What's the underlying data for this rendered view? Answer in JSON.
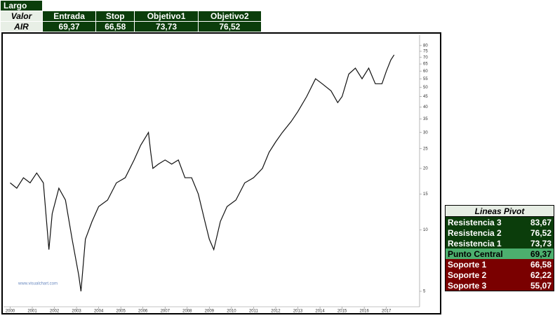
{
  "trade_table": {
    "title": "Largo",
    "header": [
      "Valor",
      "Entrada",
      "Stop",
      "Objetivo1",
      "Objetivo2"
    ],
    "row": [
      "AIR",
      "69,37",
      "66,58",
      "73,73",
      "76,52"
    ]
  },
  "pivot_table": {
    "title": "Lineas Pivot",
    "rows": [
      [
        "Resistencia 3",
        "83,67"
      ],
      [
        "Resistencia 2",
        "76,52"
      ],
      [
        "Resistencia 1",
        "73,73"
      ],
      [
        "Punto Central",
        "69,37"
      ],
      [
        "Soporte 1",
        "66,58"
      ],
      [
        "Soporte 2",
        "62,22"
      ],
      [
        "Soporte 3",
        "55,07"
      ]
    ]
  },
  "chart_data": {
    "type": "line",
    "watermark": "www.visualchart.com",
    "log_y": true,
    "xlim": [
      1999.7,
      2018.5
    ],
    "xticks": [
      2000,
      2001,
      2002,
      2003,
      2004,
      2005,
      2006,
      2007,
      2008,
      2009,
      2010,
      2011,
      2012,
      2013,
      2014,
      2015,
      2016,
      2017
    ],
    "ylim": [
      4.2,
      90
    ],
    "yticks": [
      5,
      10,
      15,
      20,
      25,
      30,
      35,
      40,
      45,
      50,
      55,
      60,
      65,
      70,
      75,
      80
    ],
    "series": [
      {
        "color": "#111111",
        "x": [
          2000.0,
          2000.3,
          2000.6,
          2000.9,
          2001.2,
          2001.5,
          2001.75,
          2001.9,
          2002.2,
          2002.5,
          2002.8,
          2003.1,
          2003.2,
          2003.4,
          2003.7,
          2004.0,
          2004.4,
          2004.8,
          2005.2,
          2005.6,
          2005.9,
          2006.25,
          2006.35,
          2006.45,
          2006.7,
          2007.0,
          2007.3,
          2007.6,
          2007.9,
          2008.2,
          2008.5,
          2008.8,
          2009.0,
          2009.2,
          2009.5,
          2009.8,
          2010.2,
          2010.6,
          2011.0,
          2011.4,
          2011.7,
          2012.0,
          2012.3,
          2012.7,
          2013.0,
          2013.4,
          2013.8,
          2014.1,
          2014.5,
          2014.8,
          2015.0,
          2015.3,
          2015.6,
          2015.9,
          2016.2,
          2016.5,
          2016.8,
          2017.0,
          2017.2,
          2017.35
        ],
        "values": [
          17,
          16,
          18,
          17,
          19,
          17,
          8,
          12,
          16,
          14,
          9,
          6,
          5,
          9,
          11,
          13,
          14,
          17,
          18,
          22,
          26,
          30,
          24,
          20,
          21,
          22,
          21,
          22,
          18,
          18,
          15,
          11,
          9,
          8,
          11,
          13,
          14,
          17,
          18,
          20,
          24,
          27,
          30,
          34,
          38,
          45,
          55,
          52,
          48,
          42,
          45,
          58,
          62,
          55,
          62,
          52,
          52,
          60,
          68,
          72
        ]
      }
    ]
  }
}
